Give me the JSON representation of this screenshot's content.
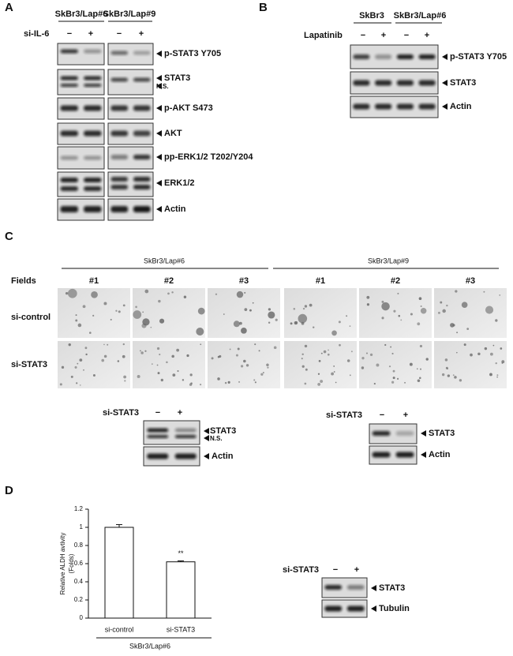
{
  "panel_a": {
    "letter": "A",
    "groups": [
      "SkBr3/Lap#6",
      "SkBr3/Lap#9"
    ],
    "treatment": "si-IL-6",
    "lanes": [
      "−",
      "+",
      "−",
      "+"
    ],
    "bands": [
      "p-STAT3 Y705",
      "STAT3",
      "N.S.",
      "p-AKT S473",
      "AKT",
      "pp-ERK1/2 T202/Y204",
      "ERK1/2",
      "Actin"
    ]
  },
  "panel_b": {
    "letter": "B",
    "groups": [
      "SkBr3",
      "SkBr3/Lap#6"
    ],
    "treatment": "Lapatinib",
    "lanes": [
      "−",
      "+",
      "−",
      "+"
    ],
    "bands": [
      "p-STAT3 Y705",
      "STAT3",
      "Actin"
    ]
  },
  "panel_c": {
    "letter": "C",
    "groups": [
      "SkBr3/Lap#6",
      "SkBr3/Lap#9"
    ],
    "fields_label": "Fields",
    "fields": [
      "#1",
      "#2",
      "#3",
      "#1",
      "#2",
      "#3"
    ],
    "rows": [
      "si-control",
      "si-STAT3"
    ],
    "blot_left": {
      "treatment": "si-STAT3",
      "lanes": [
        "−",
        "+"
      ],
      "bands": [
        "STAT3",
        "N.S.",
        "Actin"
      ]
    },
    "blot_right": {
      "treatment": "si-STAT3",
      "lanes": [
        "−",
        "+"
      ],
      "bands": [
        "STAT3",
        "Actin"
      ]
    }
  },
  "panel_d": {
    "letter": "D",
    "blot": {
      "treatment": "si-STAT3",
      "lanes": [
        "−",
        "+"
      ],
      "bands": [
        "STAT3",
        "Tubulin"
      ]
    }
  },
  "chart_data": {
    "type": "bar",
    "categories": [
      "si-control",
      "si-STAT3"
    ],
    "values": [
      1.0,
      0.62
    ],
    "errors": [
      0.03,
      0.01
    ],
    "color": "#ffffff",
    "ylim": [
      0,
      1.2
    ],
    "yticks": [
      0,
      0.2,
      0.4,
      0.6,
      0.8,
      1,
      1.2
    ],
    "y_label": [
      "Relative ALDH avtivity",
      "(Folds)"
    ],
    "group_label": "SkBr3/Lap#6",
    "annotations": [
      "",
      "**"
    ]
  }
}
